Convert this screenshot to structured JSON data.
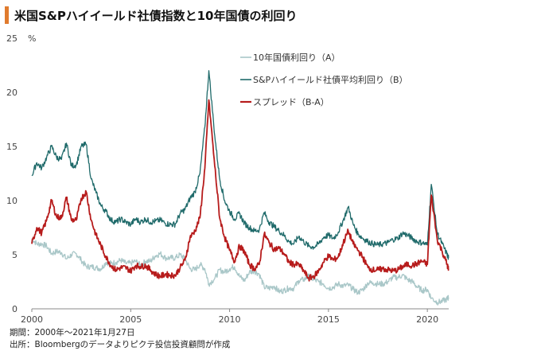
{
  "title": "米国S&Pハイイールド社債指数と10年国債の利回り",
  "notes": {
    "period": "期間：2000年～2021年1月27日",
    "source": "出所：Bloombergのデータよりピクテ投信投資顧問が作成"
  },
  "chart_data": {
    "type": "line",
    "ylabel": "%",
    "ylim": [
      0,
      25
    ],
    "yticks": [
      0,
      5,
      10,
      15,
      20,
      25
    ],
    "xlim": [
      2000,
      2021.08
    ],
    "xticks": [
      2000,
      2005,
      2010,
      2015,
      2020
    ],
    "grid": false,
    "legend": "top-center",
    "series": [
      {
        "name": "10年国債利回り（A）",
        "color": "#a9c7c8",
        "x": [
          2000.0,
          2000.25,
          2000.5,
          2000.75,
          2001.0,
          2001.25,
          2001.5,
          2001.75,
          2002.0,
          2002.25,
          2002.5,
          2002.75,
          2003.0,
          2003.25,
          2003.5,
          2003.75,
          2004.0,
          2004.25,
          2004.5,
          2004.75,
          2005.0,
          2005.25,
          2005.5,
          2005.75,
          2006.0,
          2006.25,
          2006.5,
          2006.75,
          2007.0,
          2007.25,
          2007.5,
          2007.75,
          2008.0,
          2008.25,
          2008.5,
          2008.75,
          2008.95,
          2009.25,
          2009.5,
          2009.75,
          2010.0,
          2010.25,
          2010.5,
          2010.75,
          2011.0,
          2011.25,
          2011.5,
          2011.75,
          2012.0,
          2012.25,
          2012.5,
          2012.75,
          2013.0,
          2013.25,
          2013.5,
          2013.75,
          2014.0,
          2014.25,
          2014.5,
          2014.75,
          2015.0,
          2015.25,
          2015.5,
          2015.75,
          2016.0,
          2016.25,
          2016.5,
          2016.75,
          2017.0,
          2017.25,
          2017.5,
          2017.75,
          2018.0,
          2018.25,
          2018.5,
          2018.75,
          2019.0,
          2019.25,
          2019.5,
          2019.75,
          2020.0,
          2020.2,
          2020.5,
          2020.75,
          2021.0,
          2021.07
        ],
        "values": [
          6.5,
          6.0,
          6.0,
          5.8,
          5.1,
          5.3,
          5.2,
          4.6,
          5.0,
          5.1,
          4.5,
          3.9,
          3.9,
          3.8,
          3.7,
          4.3,
          4.2,
          4.3,
          4.5,
          4.2,
          4.2,
          4.4,
          4.0,
          4.4,
          4.4,
          4.9,
          5.1,
          4.7,
          4.7,
          4.7,
          5.0,
          4.6,
          3.7,
          3.6,
          4.1,
          3.7,
          2.3,
          2.8,
          3.6,
          3.4,
          3.7,
          3.9,
          3.0,
          2.6,
          3.4,
          3.5,
          3.2,
          2.0,
          1.9,
          2.1,
          1.6,
          1.7,
          1.9,
          1.9,
          2.6,
          2.7,
          3.0,
          2.7,
          2.5,
          2.3,
          1.9,
          2.0,
          2.3,
          2.1,
          2.2,
          1.8,
          1.5,
          1.8,
          2.4,
          2.4,
          2.3,
          2.3,
          2.5,
          2.9,
          2.9,
          3.1,
          2.7,
          2.5,
          2.0,
          1.7,
          1.8,
          1.0,
          0.6,
          0.7,
          0.9,
          1.05
        ]
      },
      {
        "name": "S&Pハイイールド社債平均利回り（B）",
        "color": "#1f6a6a",
        "x": [
          2000.0,
          2000.25,
          2000.5,
          2000.75,
          2001.0,
          2001.25,
          2001.5,
          2001.75,
          2002.0,
          2002.25,
          2002.5,
          2002.75,
          2003.0,
          2003.25,
          2003.5,
          2003.75,
          2004.0,
          2004.25,
          2004.5,
          2004.75,
          2005.0,
          2005.25,
          2005.5,
          2005.75,
          2006.0,
          2006.25,
          2006.5,
          2006.75,
          2007.0,
          2007.25,
          2007.5,
          2007.75,
          2008.0,
          2008.25,
          2008.5,
          2008.75,
          2008.95,
          2009.25,
          2009.5,
          2009.75,
          2010.0,
          2010.25,
          2010.5,
          2010.75,
          2011.0,
          2011.25,
          2011.5,
          2011.75,
          2012.0,
          2012.25,
          2012.5,
          2012.75,
          2013.0,
          2013.25,
          2013.5,
          2013.75,
          2014.0,
          2014.25,
          2014.5,
          2014.75,
          2015.0,
          2015.25,
          2015.5,
          2015.75,
          2016.0,
          2016.25,
          2016.5,
          2016.75,
          2017.0,
          2017.25,
          2017.5,
          2017.75,
          2018.0,
          2018.25,
          2018.5,
          2018.75,
          2019.0,
          2019.25,
          2019.5,
          2019.75,
          2020.0,
          2020.2,
          2020.5,
          2020.75,
          2021.0,
          2021.07
        ],
        "values": [
          12.3,
          13.5,
          13.0,
          14.0,
          15.0,
          14.0,
          13.8,
          15.3,
          13.2,
          13.3,
          15.0,
          15.2,
          12.0,
          10.7,
          9.5,
          9.0,
          8.2,
          8.0,
          8.3,
          8.0,
          7.8,
          8.3,
          8.0,
          8.3,
          8.0,
          8.1,
          8.2,
          7.9,
          7.8,
          7.8,
          8.8,
          9.2,
          10.2,
          10.8,
          12.5,
          16.8,
          22.0,
          16.0,
          12.0,
          10.0,
          9.0,
          8.3,
          8.8,
          7.9,
          7.5,
          7.2,
          7.3,
          8.9,
          8.0,
          7.6,
          7.2,
          6.8,
          6.2,
          6.0,
          6.7,
          6.2,
          5.8,
          5.7,
          6.0,
          6.6,
          6.8,
          6.5,
          7.1,
          8.2,
          9.4,
          7.8,
          6.9,
          6.5,
          6.2,
          6.0,
          5.9,
          6.0,
          6.1,
          6.4,
          6.5,
          7.0,
          6.8,
          6.5,
          6.2,
          6.1,
          5.9,
          11.5,
          7.0,
          6.0,
          5.0,
          4.7
        ]
      },
      {
        "name": "スプレッド（B-A）",
        "color": "#b71c1c",
        "x": [
          2000.0,
          2000.25,
          2000.5,
          2000.75,
          2001.0,
          2001.25,
          2001.5,
          2001.75,
          2002.0,
          2002.25,
          2002.5,
          2002.75,
          2003.0,
          2003.25,
          2003.5,
          2003.75,
          2004.0,
          2004.25,
          2004.5,
          2004.75,
          2005.0,
          2005.25,
          2005.5,
          2005.75,
          2006.0,
          2006.25,
          2006.5,
          2006.75,
          2007.0,
          2007.25,
          2007.5,
          2007.75,
          2008.0,
          2008.25,
          2008.5,
          2008.75,
          2008.95,
          2009.25,
          2009.5,
          2009.75,
          2010.0,
          2010.25,
          2010.5,
          2010.75,
          2011.0,
          2011.25,
          2011.5,
          2011.75,
          2012.0,
          2012.25,
          2012.5,
          2012.75,
          2013.0,
          2013.25,
          2013.5,
          2013.75,
          2014.0,
          2014.25,
          2014.5,
          2014.75,
          2015.0,
          2015.25,
          2015.5,
          2015.75,
          2016.0,
          2016.25,
          2016.5,
          2016.75,
          2017.0,
          2017.25,
          2017.5,
          2017.75,
          2018.0,
          2018.25,
          2018.5,
          2018.75,
          2019.0,
          2019.25,
          2019.5,
          2019.75,
          2020.0,
          2020.2,
          2020.5,
          2020.75,
          2021.0,
          2021.07
        ],
        "values": [
          6.0,
          7.5,
          7.0,
          8.2,
          10.0,
          8.5,
          8.4,
          10.3,
          8.2,
          8.2,
          10.2,
          10.8,
          8.2,
          6.8,
          5.8,
          4.8,
          4.0,
          3.6,
          3.8,
          3.8,
          3.5,
          4.0,
          3.9,
          4.0,
          3.6,
          3.2,
          3.0,
          3.2,
          3.1,
          3.1,
          3.8,
          4.5,
          6.6,
          7.2,
          8.4,
          13.0,
          19.3,
          13.2,
          8.4,
          6.6,
          5.4,
          4.4,
          5.8,
          5.3,
          4.1,
          3.7,
          4.1,
          6.9,
          6.1,
          5.5,
          5.6,
          5.1,
          4.3,
          4.1,
          4.1,
          3.5,
          2.8,
          3.0,
          3.5,
          4.3,
          4.9,
          4.5,
          4.8,
          6.1,
          7.2,
          6.0,
          5.4,
          4.7,
          3.8,
          3.6,
          3.6,
          3.7,
          3.6,
          3.5,
          3.6,
          3.9,
          4.1,
          4.0,
          4.2,
          4.4,
          4.1,
          10.5,
          6.4,
          5.3,
          4.1,
          3.6
        ]
      }
    ]
  }
}
